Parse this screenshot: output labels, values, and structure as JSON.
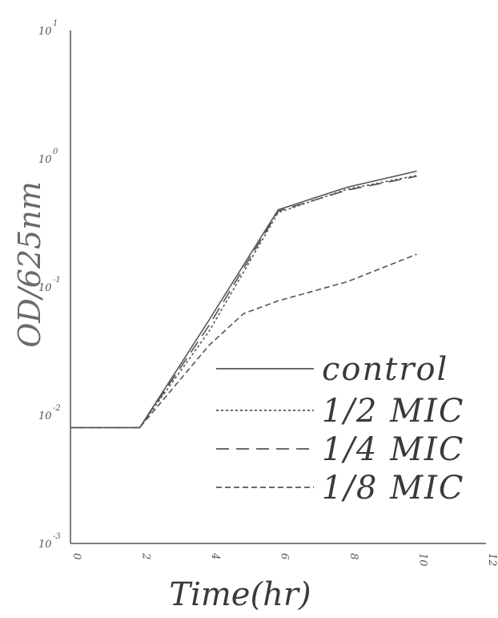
{
  "chart_data": {
    "type": "line",
    "xlabel": "Time(hr)",
    "ylabel": "OD/625nm",
    "x_scale": "linear",
    "y_scale": "log",
    "xlim": [
      0,
      12
    ],
    "ylim": [
      0.001,
      10
    ],
    "x_ticks": [
      "0",
      "2",
      "4",
      "6",
      "8",
      "10",
      "12"
    ],
    "y_ticks": [
      {
        "base": "10",
        "exp": "1",
        "value": 10
      },
      {
        "base": "10",
        "exp": "0",
        "value": 1
      },
      {
        "base": "10",
        "exp": "-1",
        "value": 0.1
      },
      {
        "base": "10",
        "exp": "-2",
        "value": 0.01
      },
      {
        "base": "10",
        "exp": "-3",
        "value": 0.001
      }
    ],
    "grid": false,
    "legend_position": "bottom-right",
    "series": [
      {
        "name": "control",
        "style": "solid",
        "x": [
          0,
          2,
          4,
          6,
          8,
          10
        ],
        "y": [
          0.008,
          0.008,
          0.055,
          0.4,
          0.6,
          0.8
        ]
      },
      {
        "name": "1/2 MIC",
        "style": "dotted",
        "x": [
          0,
          2,
          4,
          6,
          8,
          10
        ],
        "y": [
          0.008,
          0.008,
          0.045,
          0.38,
          0.58,
          0.74
        ]
      },
      {
        "name": "1/4 MIC",
        "style": "longdash",
        "x": [
          0,
          2,
          4,
          6,
          8,
          10
        ],
        "y": [
          0.008,
          0.008,
          0.05,
          0.39,
          0.57,
          0.73
        ]
      },
      {
        "name": "1/8 MIC",
        "style": "dashed",
        "x": [
          0,
          2,
          4,
          5,
          6,
          8,
          10
        ],
        "y": [
          0.008,
          0.008,
          0.035,
          0.062,
          0.078,
          0.11,
          0.18
        ]
      }
    ],
    "line_color": "#555555"
  }
}
